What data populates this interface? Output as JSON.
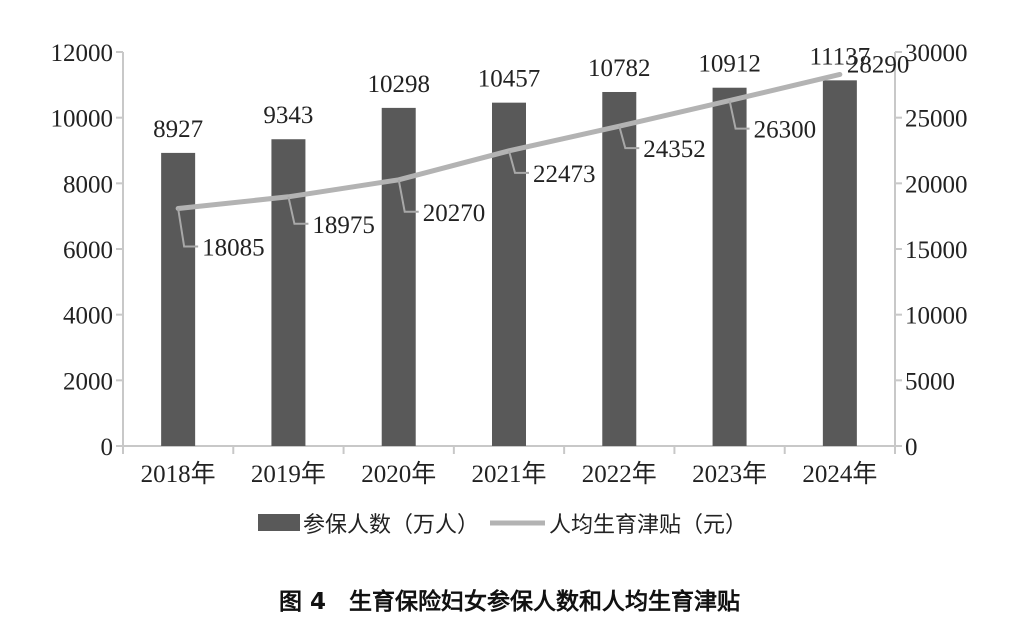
{
  "chart_data": {
    "type": "bar+line",
    "categories": [
      "2018年",
      "2019年",
      "2020年",
      "2021年",
      "2022年",
      "2023年",
      "2024年"
    ],
    "series": [
      {
        "name": "参保人数（万人）",
        "type": "bar",
        "axis": "left",
        "values": [
          8927,
          9343,
          10298,
          10457,
          10782,
          10912,
          11137
        ],
        "color": "#595959"
      },
      {
        "name": "人均生育津贴（元）",
        "type": "line",
        "axis": "right",
        "values": [
          18085,
          18975,
          20270,
          22473,
          24352,
          26300,
          28290
        ],
        "color": "#b3b3b3"
      }
    ],
    "y_left": {
      "range": [
        0,
        12000
      ],
      "ticks": [
        "0",
        "2000",
        "4000",
        "6000",
        "8000",
        "10000",
        "12000"
      ]
    },
    "y_right": {
      "range": [
        0,
        30000
      ],
      "ticks": [
        "0",
        "5000",
        "10000",
        "15000",
        "20000",
        "25000",
        "30000"
      ]
    },
    "grid": false,
    "legend": "bottom",
    "title": "图 4　生育保险妇女参保人数和人均生育津贴"
  }
}
